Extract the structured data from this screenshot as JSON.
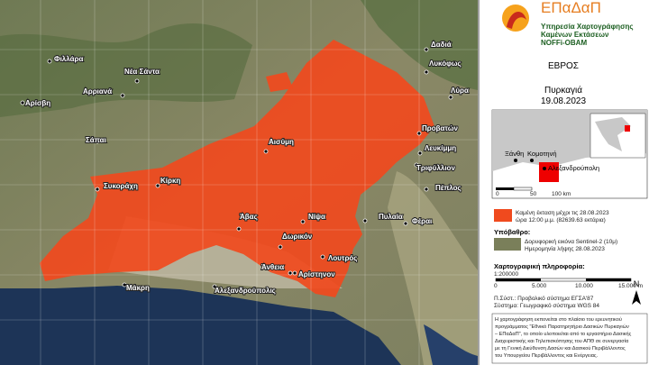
{
  "header": {
    "logo": "ΕΠαΔαΠ",
    "service": [
      "Υπηρεσία Χαρτογράφησης",
      "Καμένων Εκτάσεων",
      "NOFFi-OBAM"
    ]
  },
  "region": "ΕΒΡΟΣ",
  "event": "Πυρκαγιά",
  "date": "19.08.2023",
  "inset": {
    "places": [
      "Ξάνθη",
      "Κομοτηνή",
      "Αλεξανδρούπολη"
    ],
    "scale": [
      "0",
      "50",
      "100 km"
    ]
  },
  "legend": {
    "burned": [
      "Καμένη έκταση μέχρι τις 28.08.2023",
      "ώρα 12:00 μ.μ.   (82639.63 εκτάρια)"
    ],
    "basemap_title": "Υπόβαθρο:",
    "basemap": [
      "Δορυφορική εικόνα Sentinel-2 (10μ)",
      "Ημερομηνία λήψης 28.08.2023"
    ],
    "carto_title": "Χαρτογραφική πληροφορία:",
    "ratio": "1:200000",
    "scale": [
      "0",
      "5.000",
      "10.000",
      "15.000 m"
    ],
    "projection": [
      "Π.Σύστ.: Προβολικό σύστημα ΕΓΣΑ'87",
      "Σύστημα: Γεωγραφικό σύστημα WGS 84"
    ],
    "north": "N",
    "note": [
      "Η χαρτογράφηση εκπονείται στο πλαίσιο του ερευνητικού",
      "προγράμματος \"Εθνικό Παρατηρητήριο Δασικών Πυρκαγιών",
      "– ΕΠαΔαΠ\", το οποίο υλοποιείται από το εργαστήριο Δασικής",
      "Διαχειριστικής και Τηλεπισκόπησης του ΑΠΘ σε συνεργασία",
      "με τη Γενική Διεύθυνση Δασών και Δασικού Περιβάλλοντος",
      "του Υπουργείου Περιβάλλοντος και Ενέργειας."
    ]
  },
  "map": {
    "places": [
      "Φιλλάρα",
      "Νέα Σάντα",
      "Αρριανά",
      "Αρίσβη",
      "Σάπαι",
      "Αισύμη",
      "Συκοράχη",
      "Κίρκη",
      "Άβας",
      "Νίψα",
      "Δωρικόν",
      "Λουτρός",
      "Άνθεια",
      "Αρίστηνον",
      "Μάκρη",
      "Αλεξανδρούπολις",
      "Πυλαία",
      "Φέραι",
      "Δαδιά",
      "Λυκόφως",
      "Λύρα",
      "Προβατών",
      "Λευκίμμη",
      "Τριφύλλιον",
      "Πέπλος"
    ]
  }
}
